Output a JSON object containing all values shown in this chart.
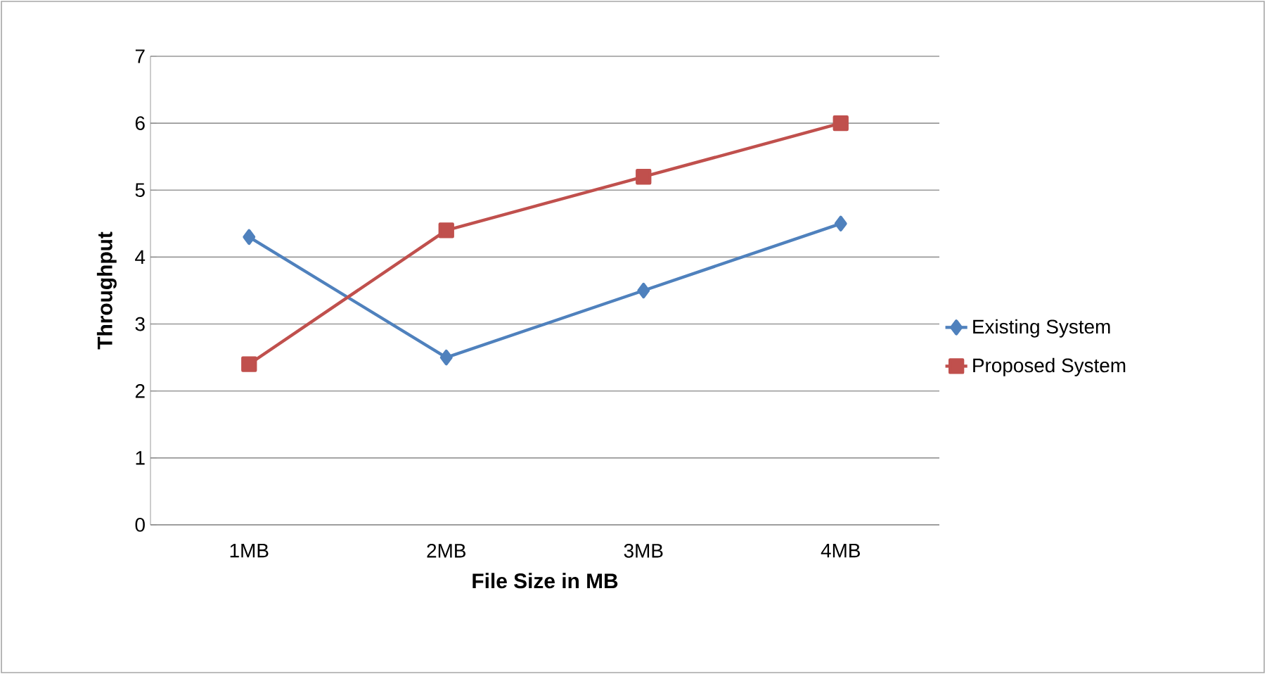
{
  "chart_data": {
    "type": "line",
    "xlabel": "File Size in MB",
    "ylabel": "Throughput",
    "categories": [
      "1MB",
      "2MB",
      "3MB",
      "4MB"
    ],
    "series": [
      {
        "name": "Existing System",
        "color": "#4f81bd",
        "marker": "diamond",
        "values": [
          4.3,
          2.5,
          3.5,
          4.5
        ]
      },
      {
        "name": "Proposed System",
        "color": "#c0504d",
        "marker": "square",
        "values": [
          2.4,
          4.4,
          5.2,
          6.0
        ]
      }
    ],
    "ylim": [
      0,
      7
    ],
    "yticks": [
      0,
      1,
      2,
      3,
      4,
      5,
      6,
      7
    ],
    "grid": "y",
    "legend": "right",
    "line_style": "solid"
  }
}
